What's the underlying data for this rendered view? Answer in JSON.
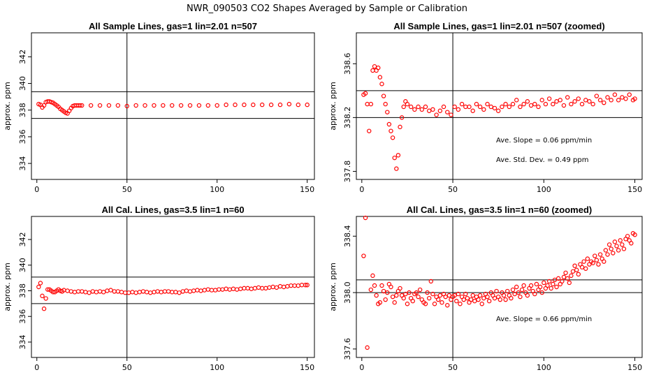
{
  "page_title": "NWR_090503  CO2 Shapes Averaged by Sample or Calibration",
  "chart_data": [
    {
      "type": "scatter",
      "title": "All Sample Lines, gas=1 lin=2.01 n=507",
      "xlabel": "",
      "ylabel": "approx. ppm",
      "xlim": [
        -3,
        154
      ],
      "ylim": [
        332.8,
        343.8
      ],
      "xticks": [
        0,
        50,
        100,
        150
      ],
      "yticks": [
        334,
        336,
        338,
        340,
        342
      ],
      "hlines": [
        339.38,
        337.38
      ],
      "vlines": [
        50
      ],
      "point_color": "#ff0000",
      "series": [
        {
          "x": [
            1,
            2,
            3,
            4,
            5,
            6,
            7,
            8,
            9,
            10,
            11,
            12,
            13,
            14,
            15,
            16,
            17,
            18,
            19,
            20,
            21,
            22,
            23,
            24,
            25,
            30,
            35,
            40,
            45,
            50,
            55,
            60,
            65,
            70,
            75,
            80,
            85,
            90,
            95,
            100,
            105,
            110,
            115,
            120,
            125,
            130,
            135,
            140,
            145,
            150
          ],
          "y": [
            338.45,
            338.4,
            338.2,
            338.35,
            338.6,
            338.65,
            338.65,
            338.6,
            338.55,
            338.45,
            338.35,
            338.25,
            338.1,
            338.0,
            337.9,
            337.8,
            337.75,
            337.95,
            338.15,
            338.3,
            338.35,
            338.35,
            338.35,
            338.35,
            338.35,
            338.35,
            338.35,
            338.35,
            338.35,
            338.3,
            338.35,
            338.35,
            338.35,
            338.35,
            338.35,
            338.35,
            338.35,
            338.35,
            338.35,
            338.35,
            338.4,
            338.4,
            338.4,
            338.4,
            338.4,
            338.4,
            338.4,
            338.45,
            338.4,
            338.4
          ]
        }
      ]
    },
    {
      "type": "scatter",
      "title": "All Sample Lines, gas=1 lin=2.01 n=507 (zoomed)",
      "xlabel": "",
      "ylabel": "approx. ppm",
      "xlim": [
        -3,
        154
      ],
      "ylim": [
        337.74,
        338.83
      ],
      "xticks": [
        0,
        50,
        100,
        150
      ],
      "yticks": [
        337.8,
        338.2,
        338.6
      ],
      "ytick_labels": [
        "337.8",
        "338.2",
        "338.6"
      ],
      "hlines": [
        338.4,
        338.2
      ],
      "vlines": [
        50
      ],
      "annotations": [
        "Ave. Slope =  0.06  ppm/min",
        "Ave. Std. Dev. =  0.49  ppm"
      ],
      "point_color": "#ff0000",
      "series": [
        {
          "x": [
            1,
            2,
            3,
            4,
            5,
            6,
            7,
            8,
            9,
            10,
            11,
            12,
            13,
            14,
            15,
            16,
            17,
            18,
            19,
            20,
            21,
            22,
            23,
            24,
            25,
            27,
            29,
            31,
            33,
            35,
            37,
            39,
            41,
            43,
            45,
            47,
            49,
            51,
            53,
            55,
            57,
            59,
            61,
            63,
            65,
            67,
            69,
            71,
            73,
            75,
            77,
            79,
            81,
            83,
            85,
            87,
            89,
            91,
            93,
            95,
            97,
            99,
            101,
            103,
            105,
            107,
            109,
            111,
            113,
            115,
            117,
            119,
            121,
            123,
            125,
            127,
            129,
            131,
            133,
            135,
            137,
            139,
            141,
            143,
            145,
            147,
            149,
            150
          ],
          "y": [
            338.37,
            338.38,
            338.3,
            338.1,
            338.3,
            338.55,
            338.58,
            338.55,
            338.57,
            338.5,
            338.45,
            338.36,
            338.3,
            338.24,
            338.15,
            338.1,
            338.05,
            337.9,
            337.82,
            337.92,
            338.13,
            338.2,
            338.28,
            338.32,
            338.3,
            338.28,
            338.26,
            338.28,
            338.26,
            338.28,
            338.25,
            338.26,
            338.22,
            338.25,
            338.28,
            338.24,
            338.22,
            338.28,
            338.26,
            338.3,
            338.28,
            338.28,
            338.25,
            338.3,
            338.28,
            338.26,
            338.3,
            338.28,
            338.27,
            338.25,
            338.28,
            338.3,
            338.28,
            338.3,
            338.33,
            338.28,
            338.3,
            338.32,
            338.29,
            338.3,
            338.28,
            338.33,
            338.3,
            338.34,
            338.3,
            338.32,
            338.33,
            338.29,
            338.35,
            338.3,
            338.32,
            338.34,
            338.3,
            338.33,
            338.32,
            338.3,
            338.36,
            338.33,
            338.31,
            338.35,
            338.33,
            338.37,
            338.33,
            338.35,
            338.34,
            338.37,
            338.33,
            338.34
          ]
        }
      ]
    },
    {
      "type": "scatter",
      "title": "All Cal. Lines, gas=3.5 lin=1 n=60",
      "xlabel": "",
      "ylabel": "approx. ppm",
      "xlim": [
        -3,
        154
      ],
      "ylim": [
        332.8,
        343.8
      ],
      "xticks": [
        0,
        50,
        100,
        150
      ],
      "yticks": [
        334,
        336,
        338,
        340,
        342
      ],
      "hlines": [
        339.07,
        337.0
      ],
      "vlines": [
        50
      ],
      "point_color": "#ff0000",
      "series": [
        {
          "x": [
            1,
            2,
            3,
            4,
            5,
            6,
            7,
            8,
            9,
            10,
            11,
            12,
            13,
            14,
            15,
            17,
            19,
            21,
            23,
            25,
            27,
            29,
            31,
            33,
            35,
            37,
            39,
            41,
            43,
            45,
            47,
            49,
            51,
            53,
            55,
            57,
            59,
            61,
            63,
            65,
            67,
            69,
            71,
            73,
            75,
            77,
            79,
            81,
            83,
            85,
            87,
            89,
            91,
            93,
            95,
            97,
            99,
            101,
            103,
            105,
            107,
            109,
            111,
            113,
            115,
            117,
            119,
            121,
            123,
            125,
            127,
            129,
            131,
            133,
            135,
            137,
            139,
            141,
            143,
            145,
            147,
            149,
            150
          ],
          "y": [
            338.3,
            338.6,
            337.6,
            336.6,
            337.4,
            338.1,
            338.1,
            338.0,
            337.9,
            337.9,
            338.0,
            338.1,
            338.0,
            337.95,
            338.05,
            338.0,
            337.95,
            337.9,
            337.95,
            337.95,
            337.9,
            337.85,
            337.95,
            337.9,
            337.95,
            337.9,
            338.0,
            338.05,
            337.95,
            337.95,
            337.9,
            337.85,
            337.85,
            337.9,
            337.85,
            337.9,
            337.95,
            337.9,
            337.85,
            337.9,
            337.95,
            337.9,
            337.95,
            337.95,
            337.9,
            337.9,
            337.85,
            337.95,
            338.0,
            337.95,
            338.0,
            338.05,
            338.0,
            338.05,
            338.1,
            338.05,
            338.05,
            338.1,
            338.1,
            338.15,
            338.1,
            338.15,
            338.1,
            338.15,
            338.2,
            338.2,
            338.15,
            338.2,
            338.25,
            338.2,
            338.2,
            338.25,
            338.3,
            338.25,
            338.35,
            338.3,
            338.35,
            338.4,
            338.4,
            338.4,
            338.45,
            338.45,
            338.45
          ]
        }
      ]
    },
    {
      "type": "scatter",
      "title": "All Cal. Lines, gas=3.5 lin=1 n=60 (zoomed)",
      "xlabel": "",
      "ylabel": "approx. ppm",
      "xlim": [
        -3,
        154
      ],
      "ylim": [
        337.54,
        338.54
      ],
      "xticks": [
        0,
        50,
        100,
        150
      ],
      "yticks": [
        337.6,
        338.0,
        338.4
      ],
      "ytick_labels": [
        "337.6",
        "338.0",
        "338.4"
      ],
      "hlines": [
        338.09,
        338.0
      ],
      "vlines": [
        50
      ],
      "annotations": [
        "Ave. Slope =  0.66  ppm/min"
      ],
      "point_color": "#ff0000",
      "series": [
        {
          "x": [
            1,
            2,
            3,
            5,
            6,
            7,
            8,
            9,
            10,
            11,
            12,
            13,
            14,
            15,
            16,
            17,
            18,
            19,
            20,
            21,
            22,
            23,
            24,
            25,
            26,
            27,
            28,
            29,
            30,
            31,
            32,
            33,
            34,
            35,
            36,
            37,
            38,
            39,
            40,
            41,
            42,
            43,
            44,
            45,
            46,
            47,
            48,
            49,
            50,
            51,
            52,
            53,
            54,
            55,
            56,
            57,
            58,
            59,
            60,
            61,
            62,
            63,
            64,
            65,
            66,
            67,
            68,
            69,
            70,
            71,
            72,
            73,
            74,
            75,
            76,
            77,
            78,
            79,
            80,
            81,
            82,
            83,
            84,
            85,
            86,
            87,
            88,
            89,
            90,
            91,
            92,
            93,
            94,
            95,
            96,
            97,
            98,
            99,
            100,
            101,
            102,
            103,
            104,
            105,
            106,
            107,
            108,
            109,
            110,
            111,
            112,
            113,
            114,
            115,
            116,
            117,
            118,
            119,
            120,
            121,
            122,
            123,
            124,
            125,
            126,
            127,
            128,
            129,
            130,
            131,
            132,
            133,
            134,
            135,
            136,
            137,
            138,
            139,
            140,
            141,
            142,
            143,
            144,
            145,
            146,
            147,
            148,
            149,
            150
          ],
          "y": [
            338.26,
            338.53,
            337.61,
            338.02,
            338.12,
            338.05,
            337.98,
            337.92,
            337.93,
            338.05,
            338.01,
            337.95,
            338.0,
            338.06,
            338.04,
            337.97,
            337.93,
            337.98,
            338.01,
            338.03,
            337.98,
            337.96,
            337.99,
            337.92,
            338.0,
            337.96,
            337.94,
            337.99,
            338.0,
            337.97,
            338.02,
            337.95,
            337.93,
            337.92,
            338.0,
            337.96,
            338.08,
            337.99,
            337.92,
            337.97,
            337.95,
            337.98,
            337.93,
            337.99,
            337.97,
            337.91,
            337.98,
            337.95,
            337.97,
            337.98,
            337.94,
            337.99,
            337.92,
            337.97,
            337.95,
            337.99,
            337.96,
            337.93,
            337.95,
            337.98,
            337.94,
            337.97,
            337.95,
            337.98,
            337.92,
            337.96,
            337.99,
            337.97,
            337.94,
            338.0,
            337.98,
            337.96,
            338.01,
            337.97,
            337.95,
            338.0,
            337.98,
            337.95,
            338.01,
            337.98,
            337.96,
            338.02,
            337.99,
            338.04,
            338.0,
            337.97,
            338.02,
            338.05,
            338.0,
            337.98,
            338.03,
            338.05,
            338.01,
            337.99,
            338.06,
            338.02,
            338.04,
            338.0,
            338.07,
            338.03,
            338.05,
            338.08,
            338.03,
            338.06,
            338.09,
            338.04,
            338.1,
            338.06,
            338.08,
            338.11,
            338.14,
            338.1,
            338.07,
            338.12,
            338.15,
            338.19,
            338.16,
            338.13,
            338.2,
            338.18,
            338.22,
            338.17,
            338.24,
            338.2,
            338.22,
            338.21,
            338.26,
            338.23,
            338.2,
            338.27,
            338.24,
            338.22,
            338.3,
            338.27,
            338.34,
            338.31,
            338.28,
            338.36,
            338.33,
            338.3,
            338.37,
            338.34,
            338.31,
            338.38,
            338.4,
            338.37,
            338.35,
            338.42,
            338.41
          ]
        }
      ]
    }
  ]
}
